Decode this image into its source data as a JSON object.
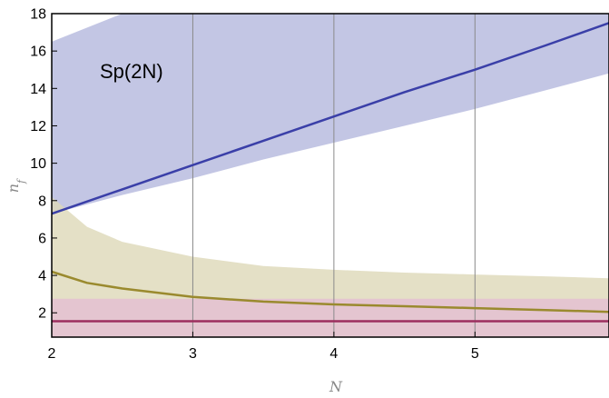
{
  "chart_data": {
    "type": "area",
    "title": "",
    "xlabel": "N",
    "ylabel": "n_f",
    "xlim": [
      2,
      5.95
    ],
    "ylim": [
      0.7,
      18
    ],
    "x_ticks": [
      2,
      3,
      4,
      5
    ],
    "y_ticks": [
      2,
      4,
      6,
      8,
      10,
      12,
      14,
      16,
      18
    ],
    "vertical_gridlines": [
      3,
      4,
      5
    ],
    "annotation": "Sp(2N)",
    "colors": {
      "blue_line": "#3a3fa8",
      "blue_band": "#b9bcdf",
      "olive_line": "#9a8a2e",
      "olive_band": "#ddd8b8",
      "pink_line": "#9c2f5f",
      "pink_band": "#e4bcd3"
    },
    "series": [
      {
        "x": [
          2,
          2.5,
          3,
          3.5,
          4,
          4.5,
          5,
          5.5,
          5.95
        ],
        "y": [
          7.3,
          8.6,
          9.9,
          11.2,
          12.5,
          13.8,
          15.0,
          16.3,
          17.5
        ],
        "band_upper": [
          16.5,
          18.0,
          18.0,
          18.0,
          18.0,
          18.0,
          18.0,
          18.0,
          18.0
        ],
        "band_lower": [
          7.3,
          8.3,
          9.2,
          10.2,
          11.1,
          12.0,
          12.9,
          13.9,
          14.8
        ]
      },
      {
        "x": [
          2,
          2.25,
          2.5,
          3,
          3.5,
          4,
          4.5,
          5,
          5.5,
          5.95
        ],
        "y": [
          4.2,
          3.6,
          3.3,
          2.85,
          2.6,
          2.45,
          2.35,
          2.25,
          2.15,
          2.05
        ],
        "band_upper": [
          8.2,
          6.6,
          5.8,
          5.0,
          4.5,
          4.3,
          4.15,
          4.05,
          3.95,
          3.85
        ],
        "band_lower": [
          0.7,
          0.7,
          0.7,
          0.7,
          0.7,
          0.7,
          0.7,
          0.7,
          0.7,
          0.7
        ]
      },
      {
        "x": [
          2,
          5.95
        ],
        "y": [
          1.55,
          1.55
        ],
        "band_upper": [
          2.75,
          2.75
        ],
        "band_lower": [
          0.7,
          0.7
        ]
      }
    ]
  }
}
